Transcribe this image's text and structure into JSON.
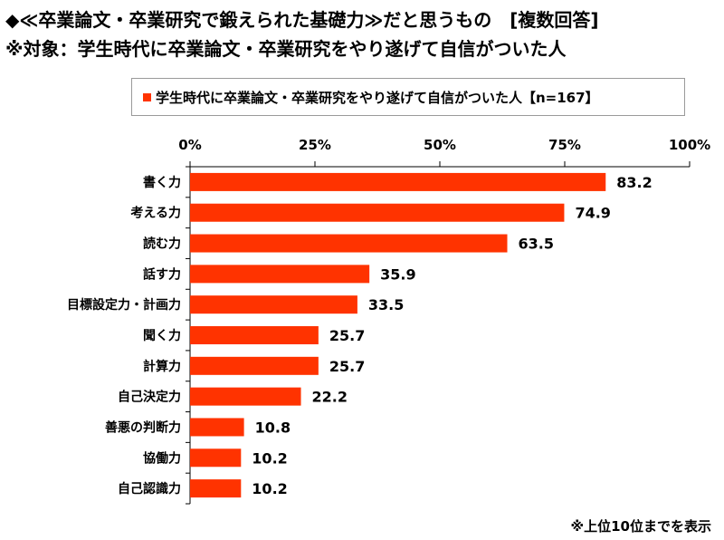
{
  "title_line1": "◆≪卒業論文・卒業研究で鍛えられた基礎力≫だと思うもの　[複数回答]",
  "title_line2": "※対象：学生時代に卒業論文・卒業研究をやり遂げて自信がついた人",
  "footnote": "※上位10位までを表示",
  "colors": {
    "bar": "#ff3300",
    "axis": "#000000"
  },
  "chart_data": {
    "type": "bar",
    "orientation": "horizontal",
    "categories": [
      "書く力",
      "考える力",
      "読む力",
      "話す力",
      "目標設定力・計画力",
      "聞く力",
      "計算力",
      "自己決定力",
      "善悪の判断力",
      "協働力",
      "自己認識力"
    ],
    "series": [
      {
        "name": "学生時代に卒業論文・卒業研究をやり遂げて自信がついた人【n=167】",
        "values": [
          83.2,
          74.9,
          63.5,
          35.9,
          33.5,
          25.7,
          25.7,
          22.2,
          10.8,
          10.2,
          10.2
        ]
      }
    ],
    "value_labels": [
      "83.2",
      "74.9",
      "63.5",
      "35.9",
      "33.5",
      "25.7",
      "25.7",
      "22.2",
      "10.8",
      "10.2",
      "10.2"
    ],
    "xlim": [
      0,
      100
    ],
    "xticks": [
      0,
      25,
      50,
      75,
      100
    ],
    "xtick_labels": [
      "0%",
      "25%",
      "50%",
      "75%",
      "100%"
    ],
    "axis_position": "top",
    "legend_position": "top",
    "grid": false
  }
}
